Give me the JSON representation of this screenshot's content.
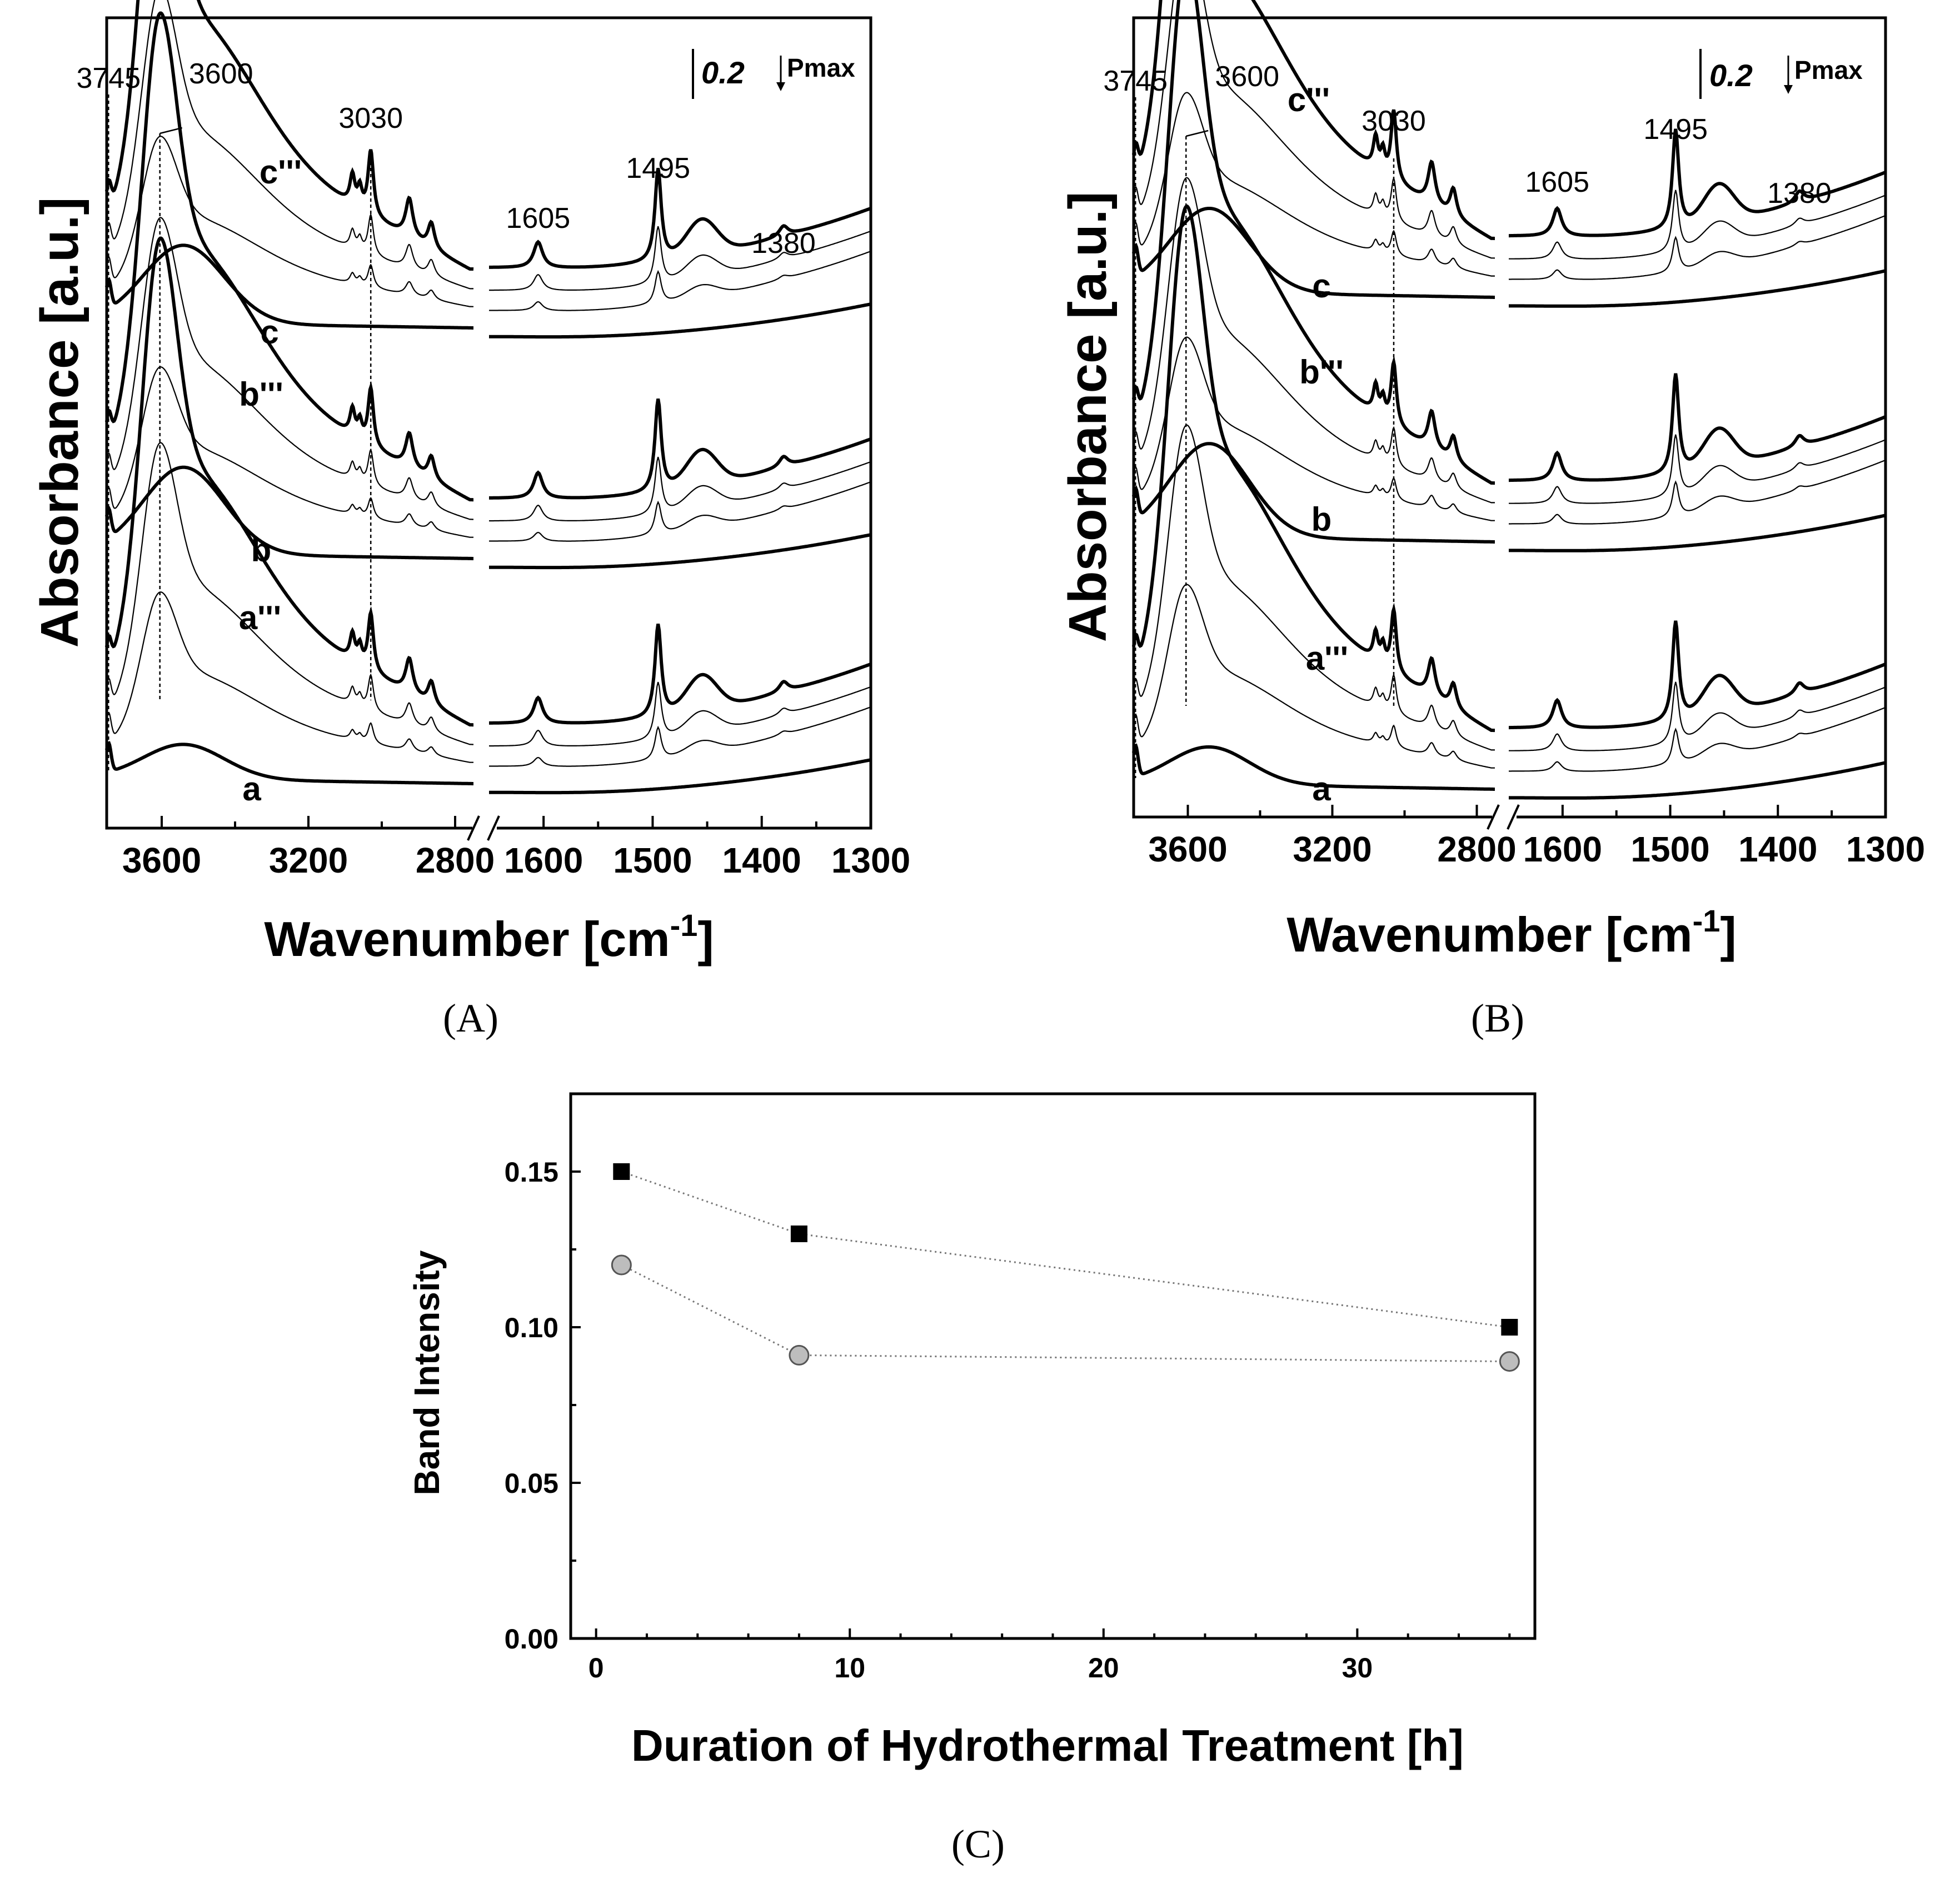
{
  "chart_data": [
    {
      "type": "line",
      "panel": "A",
      "ylabel": "Absorbance [a.u.]",
      "xlabel": "Wavenumber [cm",
      "xlabel_sup": "-1",
      "xlabel_close": "]",
      "x_ticks_high": [
        "3600",
        "3200",
        "2800"
      ],
      "x_ticks_low": [
        "1600",
        "1500",
        "1400",
        "1300"
      ],
      "xlim_high": [
        3750,
        2750
      ],
      "xlim_low": [
        1650,
        1300
      ],
      "peak_labels": [
        "3745",
        "3600",
        "3030",
        "1605",
        "1495",
        "1380"
      ],
      "scale_bar": "0.2",
      "pmax_label": "Pmax",
      "curve_labels": [
        "c'''",
        "c",
        "b'''",
        "b",
        "a'''",
        "a"
      ]
    },
    {
      "type": "line",
      "panel": "B",
      "ylabel": "Absorbance [a.u.]",
      "xlabel": "Wavenumber [cm",
      "xlabel_sup": "-1",
      "xlabel_close": "]",
      "x_ticks_high": [
        "3600",
        "3200",
        "2800"
      ],
      "x_ticks_low": [
        "1600",
        "1500",
        "1400",
        "1300"
      ],
      "xlim_high": [
        3750,
        2750
      ],
      "xlim_low": [
        1650,
        1300
      ],
      "peak_labels": [
        "3745",
        "3600",
        "3030",
        "1605",
        "1495",
        "1380"
      ],
      "scale_bar": "0.2",
      "pmax_label": "Pmax",
      "curve_labels": [
        "c'''",
        "c",
        "b'''",
        "b",
        "a'''",
        "a"
      ]
    },
    {
      "type": "scatter",
      "panel": "C",
      "xlabel": "Duration of Hydrothermal Treatment [h]",
      "ylabel": "Band Intensity",
      "xlim": [
        -1,
        37
      ],
      "ylim": [
        0,
        0.175
      ],
      "x_ticks": [
        "0",
        "10",
        "20",
        "30"
      ],
      "y_ticks": [
        "0.00",
        "0.05",
        "0.10",
        "0.15"
      ],
      "series": [
        {
          "marker": "square",
          "color": "#000000",
          "x": [
            1,
            8,
            36
          ],
          "y": [
            0.15,
            0.13,
            0.1
          ]
        },
        {
          "marker": "circle",
          "color": "#bdbdbd",
          "x": [
            1,
            8,
            36
          ],
          "y": [
            0.12,
            0.091,
            0.089
          ]
        }
      ]
    }
  ],
  "panel_labels": [
    "(A)",
    "(B)",
    "(C)"
  ]
}
